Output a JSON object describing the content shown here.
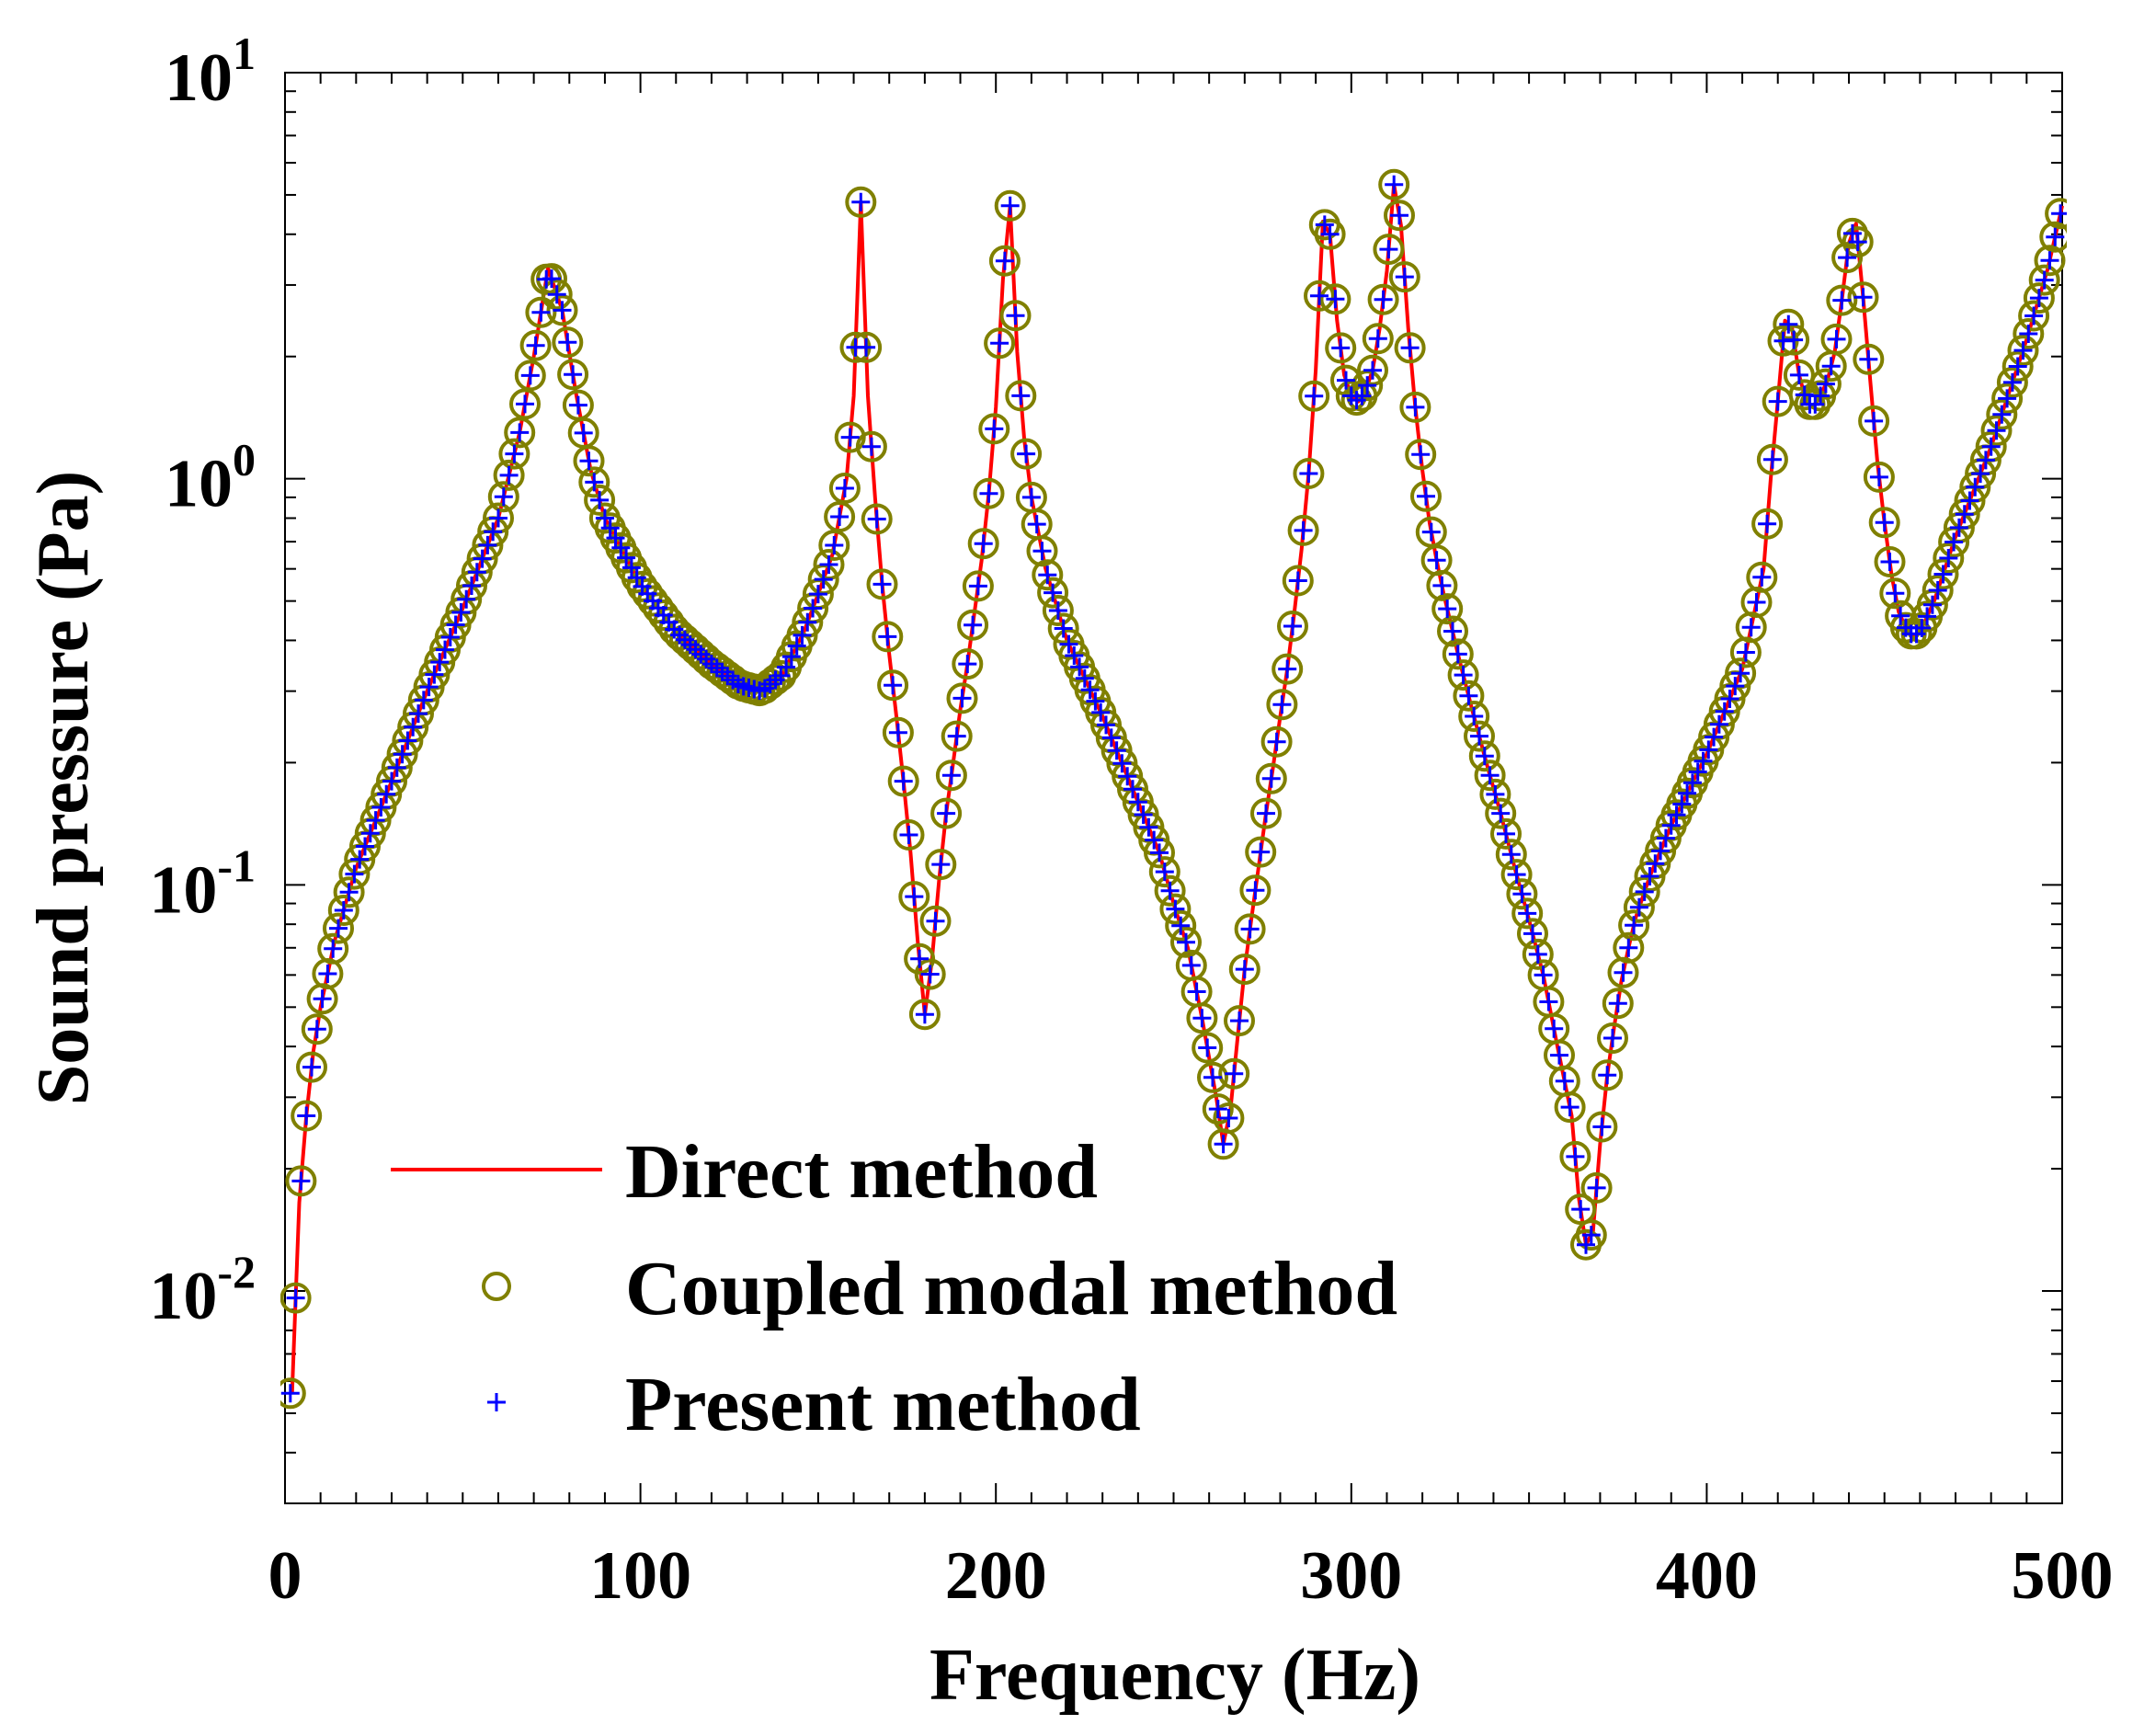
{
  "chart_data": {
    "type": "line",
    "title": "",
    "xlabel": "Frequency (Hz)",
    "ylabel": "Sound pressure (Pa)",
    "x_scale": "linear",
    "y_scale": "log",
    "xlim": [
      0,
      500
    ],
    "ylim": [
      0.003,
      10
    ],
    "x_ticks": [
      {
        "value": 0,
        "label": "0"
      },
      {
        "value": 100,
        "label": "100"
      },
      {
        "value": 200,
        "label": "200"
      },
      {
        "value": 300,
        "label": "300"
      },
      {
        "value": 400,
        "label": "400"
      },
      {
        "value": 500,
        "label": "500"
      }
    ],
    "y_ticks": [
      {
        "value": 0.01,
        "base": "10",
        "exp": "-2"
      },
      {
        "value": 0.1,
        "base": "10",
        "exp": "-1"
      },
      {
        "value": 1,
        "base": "10",
        "exp": "0"
      },
      {
        "value": 10,
        "base": "10",
        "exp": "1"
      }
    ],
    "x_minor_step": 10,
    "grid": false,
    "legend_position": "bottom-left",
    "colors": {
      "direct": "#ff0000",
      "coupled": "#808000",
      "present": "#0000ff"
    },
    "series": [
      {
        "name": "Direct method",
        "style": "line",
        "color": "#ff0000"
      },
      {
        "name": "Coupled modal method",
        "style": "circle",
        "color": "#808000"
      },
      {
        "name": "Present method",
        "style": "plus",
        "color": "#0000ff"
      }
    ],
    "curve": {
      "x": [
        2,
        4,
        6,
        8,
        10,
        14,
        20,
        30,
        40,
        50,
        60,
        66,
        70,
        74,
        78,
        82,
        86,
        90,
        100,
        110,
        120,
        128,
        134,
        140,
        146,
        150,
        154,
        158,
        160,
        162,
        164,
        166,
        168,
        170,
        172,
        174,
        176,
        178,
        180,
        182,
        184,
        186,
        188,
        190,
        192,
        194,
        196,
        198,
        200,
        202,
        204,
        206,
        208,
        210,
        214,
        220,
        230,
        240,
        246,
        250,
        254,
        258,
        262,
        264,
        266,
        268,
        270,
        272,
        274,
        276,
        278,
        280,
        282,
        284,
        286,
        288,
        290,
        292,
        294,
        296,
        298,
        300,
        302,
        304,
        306,
        308,
        310,
        312,
        314,
        316,
        318,
        320,
        322,
        324,
        326,
        328,
        330,
        334,
        338,
        342,
        346,
        350,
        354,
        358,
        362,
        364,
        366,
        368,
        370,
        372,
        374,
        376,
        378,
        380,
        384,
        390,
        400,
        410,
        416,
        418,
        420,
        422,
        424,
        426,
        428,
        430,
        432,
        434,
        436,
        438,
        440,
        442,
        444,
        446,
        448,
        450,
        452,
        454,
        456,
        458,
        460,
        464,
        470,
        480,
        490,
        496,
        500
      ],
      "y": [
        0.0056,
        0.0165,
        0.027,
        0.039,
        0.05,
        0.073,
        0.11,
        0.18,
        0.3,
        0.48,
        0.8,
        1.3,
        2.0,
        3.3,
        2.6,
        1.6,
        1.05,
        0.8,
        0.55,
        0.42,
        0.35,
        0.31,
        0.3,
        0.33,
        0.42,
        0.52,
        0.65,
        1.0,
        1.6,
        4.8,
        1.6,
        0.9,
        0.55,
        0.37,
        0.26,
        0.18,
        0.12,
        0.073,
        0.048,
        0.065,
        0.102,
        0.15,
        0.2,
        0.27,
        0.35,
        0.47,
        0.63,
        0.92,
        1.5,
        3.1,
        4.7,
        2.05,
        1.25,
        0.9,
        0.6,
        0.4,
        0.26,
        0.16,
        0.12,
        0.09,
        0.07,
        0.047,
        0.03,
        0.023,
        0.028,
        0.042,
        0.062,
        0.084,
        0.112,
        0.15,
        0.195,
        0.26,
        0.34,
        0.47,
        0.67,
        1.03,
        1.85,
        4.3,
        4.0,
        2.45,
        1.8,
        1.6,
        1.55,
        1.65,
        1.85,
        2.35,
        3.25,
        5.3,
        4.2,
        2.35,
        1.5,
        1.05,
        0.78,
        0.63,
        0.52,
        0.44,
        0.37,
        0.27,
        0.2,
        0.15,
        0.11,
        0.082,
        0.06,
        0.04,
        0.027,
        0.017,
        0.013,
        0.014,
        0.023,
        0.034,
        0.045,
        0.058,
        0.07,
        0.083,
        0.105,
        0.14,
        0.21,
        0.34,
        0.6,
        1.0,
        1.55,
        2.45,
        2.35,
        1.8,
        1.55,
        1.5,
        1.6,
        1.75,
        2.05,
        2.75,
        3.8,
        4.25,
        2.8,
        1.75,
        1.1,
        0.78,
        0.58,
        0.47,
        0.43,
        0.41,
        0.42,
        0.5,
        0.72,
        1.2,
        2.2,
        3.3,
        4.7
      ]
    },
    "marker_x": [
      1.5,
      3,
      4.5,
      6,
      7.5,
      9,
      10.5,
      12,
      13.5,
      15,
      16.5,
      18,
      19.5,
      21,
      22.5,
      24,
      25.5,
      27,
      28.5,
      30,
      31.5,
      33,
      34.5,
      36,
      37.5,
      39,
      40.5,
      42,
      43.5,
      45,
      46.5,
      48,
      49.5,
      51,
      52.5,
      54,
      55.5,
      57,
      58.5,
      60,
      61.5,
      63,
      64.5,
      66,
      67.5,
      69,
      70.5,
      72,
      73.5,
      75,
      76.5,
      78,
      79.5,
      81,
      82.5,
      84,
      85.5,
      87,
      88.5,
      90,
      91.5,
      93,
      94.5,
      96,
      97.5,
      99,
      100.5,
      102,
      103.5,
      105,
      106.5,
      108,
      109.5,
      111,
      112.5,
      114,
      115.5,
      117,
      118.5,
      120,
      121.5,
      123,
      124.5,
      126,
      127.5,
      129,
      130.5,
      132,
      133.5,
      135,
      136.5,
      138,
      139.5,
      141,
      142.5,
      144,
      145.5,
      147,
      148.5,
      150,
      151.5,
      153,
      154.5,
      156,
      157.5,
      159,
      160.5,
      162,
      163.5,
      165,
      166.5,
      168,
      169.5,
      171,
      172.5,
      174,
      175.5,
      177,
      178.5,
      180,
      181.5,
      183,
      184.5,
      186,
      187.5,
      189,
      190.5,
      192,
      193.5,
      195,
      196.5,
      198,
      199.5,
      201,
      202.5,
      204,
      205.5,
      207,
      208.5,
      210,
      211.5,
      213,
      214.5,
      216,
      217.5,
      219,
      220.5,
      222,
      223.5,
      225,
      226.5,
      228,
      229.5,
      231,
      232.5,
      234,
      235.5,
      237,
      238.5,
      240,
      241.5,
      243,
      244.5,
      246,
      247.5,
      249,
      250.5,
      252,
      253.5,
      255,
      256.5,
      258,
      259.5,
      261,
      262.5,
      264,
      265.5,
      267,
      268.5,
      270,
      271.5,
      273,
      274.5,
      276,
      277.5,
      279,
      280.5,
      282,
      283.5,
      285,
      286.5,
      288,
      289.5,
      291,
      292.5,
      294,
      295.5,
      297,
      298.5,
      300,
      301.5,
      303,
      304.5,
      306,
      307.5,
      309,
      310.5,
      312,
      313.5,
      315,
      316.5,
      318,
      319.5,
      321,
      322.5,
      324,
      325.5,
      327,
      328.5,
      330,
      331.5,
      333,
      334.5,
      336,
      337.5,
      339,
      340.5,
      342,
      343.5,
      345,
      346.5,
      348,
      349.5,
      351,
      352.5,
      354,
      355.5,
      357,
      358.5,
      360,
      361.5,
      363,
      364.5,
      366,
      367.5,
      369,
      370.5,
      372,
      373.5,
      375,
      376.5,
      378,
      379.5,
      381,
      382.5,
      384,
      385.5,
      387,
      388.5,
      390,
      391.5,
      393,
      394.5,
      396,
      397.5,
      399,
      400.5,
      402,
      403.5,
      405,
      406.5,
      408,
      409.5,
      411,
      412.5,
      414,
      415.5,
      417,
      418.5,
      420,
      421.5,
      423,
      424.5,
      426,
      427.5,
      429,
      430.5,
      432,
      433.5,
      435,
      436.5,
      438,
      439.5,
      441,
      442.5,
      444,
      445.5,
      447,
      448.5,
      450,
      451.5,
      453,
      454.5,
      456,
      457.5,
      459,
      460.5,
      462,
      463.5,
      465,
      466.5,
      468,
      469.5,
      471,
      472.5,
      474,
      475.5,
      477,
      478.5,
      480,
      481.5,
      483,
      484.5,
      486,
      487.5,
      489,
      490.5,
      492,
      493.5,
      495,
      496.5,
      498,
      499.5
    ]
  },
  "legend": {
    "direct": "Direct method",
    "coupled": "Coupled modal method",
    "present": "Present method"
  }
}
